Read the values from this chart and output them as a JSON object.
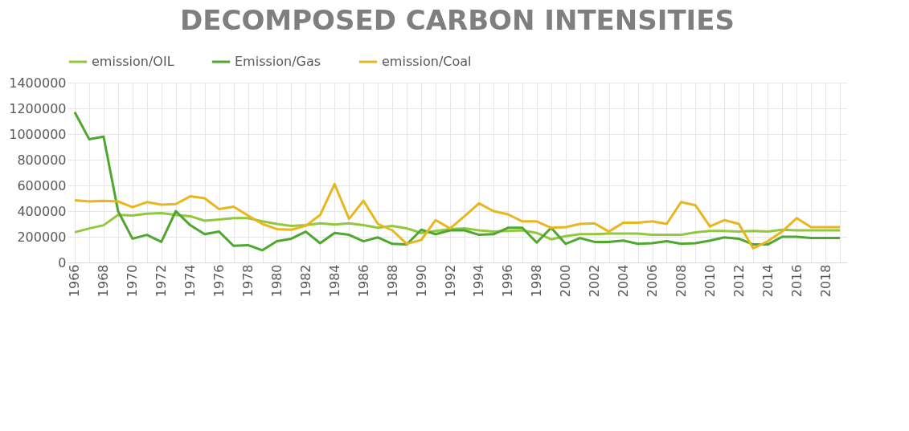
{
  "chart_data": {
    "type": "line",
    "title": "DECOMPOSED CARBON INTENSITIES",
    "categories": [
      "1966",
      null,
      "1968",
      null,
      "1970",
      null,
      "1972",
      null,
      "1974",
      null,
      "1976",
      null,
      "1978",
      null,
      "1980",
      null,
      "1982",
      null,
      "1984",
      null,
      "1986",
      null,
      "1988",
      null,
      "1990",
      null,
      "1992",
      null,
      "1994",
      null,
      "1996",
      null,
      "1998",
      null,
      "2000",
      null,
      "2002",
      null,
      "2004",
      null,
      "2006",
      null,
      "2008",
      null,
      "2010",
      null,
      "2012",
      null,
      "2014",
      null,
      "2016",
      null,
      "2018",
      null
    ],
    "series": [
      {
        "name": "emission/OIL",
        "color": "#92c83e",
        "values": [
          235000,
          265000,
          290000,
          370000,
          365000,
          380000,
          385000,
          370000,
          360000,
          325000,
          335000,
          345000,
          345000,
          320000,
          300000,
          285000,
          290000,
          305000,
          295000,
          305000,
          290000,
          270000,
          285000,
          265000,
          230000,
          245000,
          260000,
          265000,
          250000,
          240000,
          245000,
          250000,
          230000,
          180000,
          205000,
          220000,
          220000,
          225000,
          225000,
          225000,
          215000,
          215000,
          215000,
          235000,
          245000,
          245000,
          240000,
          245000,
          240000,
          255000,
          250000,
          250000,
          250000,
          250000
        ]
      },
      {
        "name": "Emission/Gas",
        "color": "#4ea72e",
        "values": [
          1170000,
          960000,
          980000,
          400000,
          185000,
          215000,
          160000,
          400000,
          290000,
          220000,
          240000,
          130000,
          135000,
          95000,
          165000,
          185000,
          240000,
          150000,
          230000,
          215000,
          165000,
          195000,
          145000,
          140000,
          255000,
          220000,
          250000,
          250000,
          215000,
          220000,
          270000,
          270000,
          155000,
          270000,
          145000,
          190000,
          160000,
          160000,
          170000,
          145000,
          150000,
          165000,
          145000,
          150000,
          170000,
          195000,
          185000,
          140000,
          140000,
          200000,
          200000,
          190000,
          190000,
          190000
        ]
      },
      {
        "name": "emission/Coal",
        "color": "#e8b71e",
        "values": [
          485000,
          475000,
          480000,
          475000,
          430000,
          470000,
          450000,
          455000,
          515000,
          500000,
          415000,
          435000,
          365000,
          300000,
          260000,
          255000,
          285000,
          370000,
          610000,
          340000,
          480000,
          300000,
          250000,
          145000,
          175000,
          330000,
          265000,
          360000,
          460000,
          400000,
          375000,
          320000,
          320000,
          270000,
          275000,
          300000,
          305000,
          240000,
          310000,
          310000,
          320000,
          300000,
          470000,
          445000,
          280000,
          330000,
          300000,
          110000,
          165000,
          240000,
          345000,
          275000,
          275000,
          275000
        ]
      }
    ],
    "ylim": [
      0,
      1400000
    ],
    "yticks": [
      0,
      200000,
      400000,
      600000,
      800000,
      1000000,
      1200000,
      1400000
    ],
    "grid": true,
    "legend": "top"
  }
}
